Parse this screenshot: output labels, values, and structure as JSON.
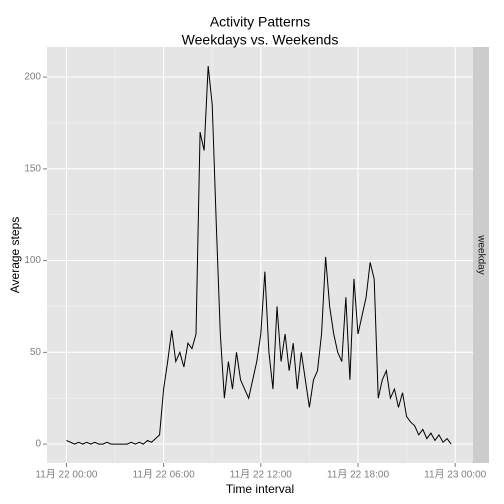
{
  "chart_data": {
    "type": "line",
    "title": "Activity Patterns",
    "subtitle": "Weekdays vs. Weekends",
    "xlabel": "Time interval",
    "ylabel": "Average steps",
    "panel_label": "weekday",
    "color": "#000000",
    "grid": true,
    "x": [
      0,
      0.25,
      0.5,
      0.75,
      1,
      1.25,
      1.5,
      1.75,
      2,
      2.25,
      2.5,
      2.75,
      3,
      3.25,
      3.5,
      3.75,
      4,
      4.25,
      4.5,
      4.75,
      5,
      5.25,
      5.5,
      5.75,
      6,
      6.25,
      6.5,
      6.75,
      7,
      7.25,
      7.5,
      7.75,
      8,
      8.25,
      8.5,
      8.75,
      9,
      9.25,
      9.5,
      9.75,
      10,
      10.25,
      10.5,
      10.75,
      11,
      11.25,
      11.5,
      11.75,
      12,
      12.25,
      12.5,
      12.75,
      13,
      13.25,
      13.5,
      13.75,
      14,
      14.25,
      14.5,
      14.75,
      15,
      15.25,
      15.5,
      15.75,
      16,
      16.25,
      16.5,
      16.75,
      17,
      17.25,
      17.5,
      17.75,
      18,
      18.25,
      18.5,
      18.75,
      19,
      19.25,
      19.5,
      19.75,
      20,
      20.25,
      20.5,
      20.75,
      21,
      21.25,
      21.5,
      21.75,
      22,
      22.25,
      22.5,
      22.75,
      23,
      23.25,
      23.5,
      23.75
    ],
    "values": [
      2,
      1,
      0,
      1,
      0,
      1,
      0,
      1,
      0,
      0,
      1,
      0,
      0,
      0,
      0,
      0,
      1,
      0,
      1,
      0,
      2,
      1,
      3,
      5,
      30,
      45,
      62,
      45,
      50,
      42,
      55,
      52,
      60,
      170,
      160,
      206,
      185,
      120,
      60,
      25,
      45,
      30,
      50,
      35,
      30,
      25,
      35,
      45,
      60,
      94,
      50,
      30,
      75,
      45,
      60,
      40,
      55,
      30,
      50,
      35,
      20,
      35,
      40,
      60,
      102,
      75,
      60,
      50,
      45,
      80,
      35,
      90,
      60,
      70,
      80,
      99,
      90,
      25,
      35,
      40,
      25,
      30,
      20,
      28,
      15,
      12,
      10,
      5,
      8,
      3,
      6,
      2,
      5,
      1,
      3,
      0
    ],
    "xlim": [
      -1.2,
      25.1
    ],
    "xticks": [
      {
        "value": 0,
        "label": "11月 22 00:00"
      },
      {
        "value": 6,
        "label": "11月 22 06:00"
      },
      {
        "value": 12,
        "label": "11月 22 12:00"
      },
      {
        "value": 18,
        "label": "11月 22 18:00"
      },
      {
        "value": 24,
        "label": "11月 23 00:00"
      }
    ],
    "ylim": [
      -10.3,
      216.4
    ],
    "yticks": [
      0,
      50,
      100,
      150,
      200
    ]
  }
}
